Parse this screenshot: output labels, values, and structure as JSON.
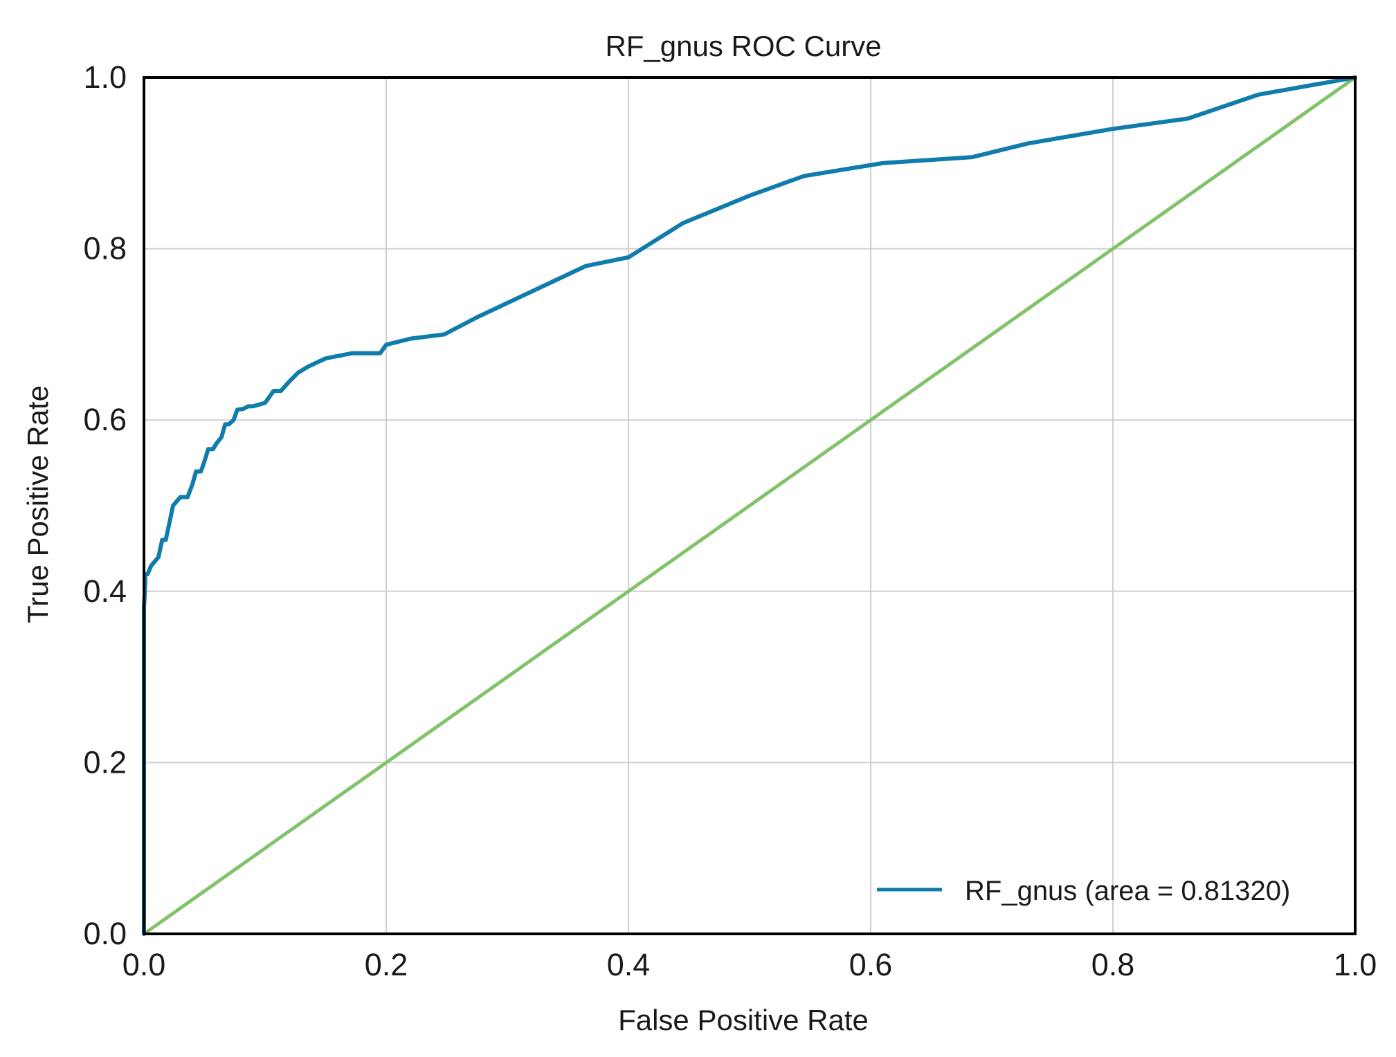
{
  "chart_data": {
    "type": "line",
    "title": "RF_gnus ROC Curve",
    "xlabel": "False Positive Rate",
    "ylabel": "True Positive Rate",
    "xlim": [
      0.0,
      1.0
    ],
    "ylim": [
      0.0,
      1.0
    ],
    "xticks": [
      "0.0",
      "0.2",
      "0.4",
      "0.6",
      "0.8",
      "1.0"
    ],
    "yticks": [
      "0.0",
      "0.2",
      "0.4",
      "0.6",
      "0.8",
      "1.0"
    ],
    "grid": true,
    "legend_position": "lower-right",
    "series": [
      {
        "name": "RF_gnus (area = 0.81320)",
        "color": "#0f7cab",
        "x": [
          0.0,
          0.0,
          0.0,
          0.001,
          0.001,
          0.003,
          0.006,
          0.012,
          0.015,
          0.018,
          0.021,
          0.024,
          0.027,
          0.03,
          0.036,
          0.04,
          0.043,
          0.047,
          0.05,
          0.053,
          0.057,
          0.06,
          0.064,
          0.067,
          0.07,
          0.074,
          0.077,
          0.082,
          0.086,
          0.09,
          0.095,
          0.1,
          0.107,
          0.113,
          0.12,
          0.127,
          0.135,
          0.15,
          0.172,
          0.195,
          0.2,
          0.22,
          0.248,
          0.275,
          0.32,
          0.365,
          0.4,
          0.445,
          0.5,
          0.545,
          0.61,
          0.684,
          0.73,
          0.8,
          0.862,
          0.92,
          1.0
        ],
        "y": [
          0.0,
          0.2,
          0.38,
          0.41,
          0.42,
          0.42,
          0.43,
          0.44,
          0.46,
          0.46,
          0.48,
          0.5,
          0.505,
          0.51,
          0.51,
          0.525,
          0.54,
          0.54,
          0.552,
          0.566,
          0.566,
          0.573,
          0.58,
          0.595,
          0.595,
          0.6,
          0.612,
          0.613,
          0.616,
          0.616,
          0.618,
          0.62,
          0.634,
          0.634,
          0.645,
          0.655,
          0.662,
          0.672,
          0.678,
          0.678,
          0.688,
          0.695,
          0.7,
          0.72,
          0.75,
          0.78,
          0.79,
          0.83,
          0.862,
          0.885,
          0.9,
          0.907,
          0.923,
          0.94,
          0.952,
          0.98,
          1.0
        ]
      },
      {
        "name": "",
        "color": "#82c26a",
        "x": [
          0.0,
          1.0
        ],
        "y": [
          0.0,
          1.0
        ]
      }
    ],
    "legend": [
      {
        "label": "RF_gnus (area = 0.81320)",
        "color": "#0f7cab"
      }
    ]
  }
}
